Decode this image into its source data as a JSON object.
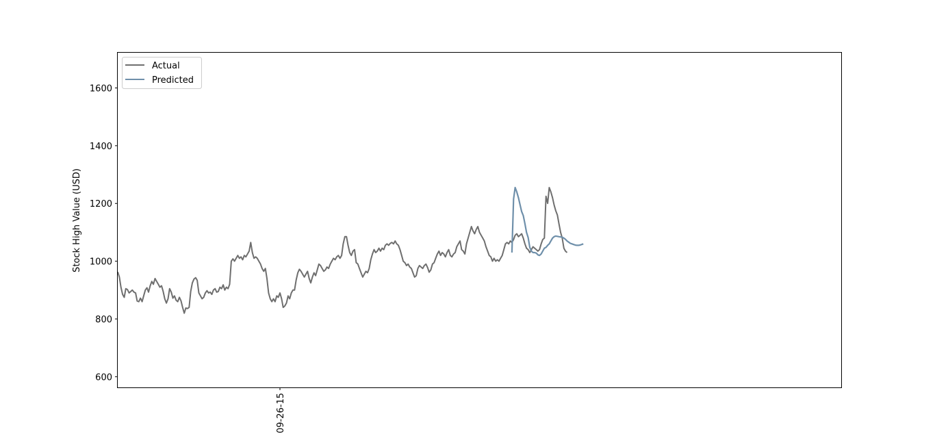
{
  "chart_data": {
    "type": "line",
    "ylabel": "Stock High Value (USD)",
    "xlabel": "",
    "ylim": [
      563,
      1722
    ],
    "yticks": [
      600,
      800,
      1000,
      1200,
      1400,
      1600
    ],
    "x_tick_labels": [
      "09-26-15"
    ],
    "grid": false,
    "legend_position": "top-left",
    "series": [
      {
        "name": "Actual",
        "color": "#6e6e6e",
        "values": [
          963,
          945,
          910,
          885,
          875,
          905,
          902,
          890,
          895,
          900,
          893,
          890,
          862,
          860,
          872,
          860,
          880,
          900,
          908,
          893,
          915,
          930,
          920,
          940,
          930,
          920,
          910,
          915,
          895,
          870,
          855,
          870,
          905,
          893,
          872,
          880,
          865,
          860,
          875,
          863,
          840,
          820,
          838,
          836,
          840,
          895,
          925,
          938,
          943,
          934,
          890,
          880,
          870,
          875,
          890,
          898,
          890,
          893,
          885,
          900,
          905,
          893,
          895,
          910,
          905,
          918,
          900,
          910,
          905,
          920,
          1000,
          1008,
          1000,
          1010,
          1020,
          1010,
          1015,
          1005,
          1020,
          1015,
          1025,
          1035,
          1065,
          1030,
          1010,
          1015,
          1010,
          1000,
          990,
          975,
          965,
          975,
          940,
          890,
          870,
          860,
          870,
          860,
          880,
          875,
          890,
          870,
          840,
          845,
          855,
          880,
          870,
          890,
          900,
          900,
          935,
          960,
          972,
          965,
          955,
          945,
          955,
          965,
          940,
          925,
          945,
          960,
          950,
          970,
          990,
          985,
          975,
          965,
          970,
          980,
          975,
          990,
          1000,
          1010,
          1005,
          1015,
          1020,
          1010,
          1020,
          1060,
          1085,
          1085,
          1055,
          1030,
          1020,
          1035,
          1040,
          995,
          990,
          975,
          960,
          945,
          955,
          965,
          960,
          975,
          1005,
          1025,
          1040,
          1030,
          1035,
          1045,
          1035,
          1045,
          1040,
          1055,
          1060,
          1055,
          1062,
          1065,
          1060,
          1070,
          1060,
          1055,
          1040,
          1020,
          1000,
          995,
          985,
          990,
          980,
          975,
          960,
          945,
          950,
          975,
          985,
          980,
          975,
          985,
          990,
          978,
          962,
          970,
          990,
          995,
          1010,
          1025,
          1035,
          1020,
          1030,
          1025,
          1015,
          1030,
          1040,
          1020,
          1015,
          1025,
          1030,
          1050,
          1060,
          1070,
          1040,
          1035,
          1025,
          1060,
          1080,
          1100,
          1120,
          1105,
          1095,
          1110,
          1120,
          1100,
          1090,
          1080,
          1070,
          1050,
          1035,
          1020,
          1015,
          1000,
          1010,
          1000,
          1005,
          1000,
          1010,
          1020,
          1040,
          1060,
          1065,
          1060,
          1070,
          1065,
          1075,
          1090,
          1095,
          1085,
          1090,
          1095,
          1080,
          1060,
          1045,
          1040,
          1030,
          1040,
          1050,
          1045,
          1040,
          1035,
          1040,
          1060,
          1075,
          1080,
          1225,
          1200,
          1255,
          1240,
          1220,
          1195,
          1175,
          1160,
          1130,
          1100,
          1080,
          1045,
          1035,
          1030
        ]
      },
      {
        "name": "Predicted",
        "color": "#6e8faa",
        "values": [
          1030,
          1215,
          1255,
          1240,
          1220,
          1195,
          1172,
          1158,
          1130,
          1100,
          1082,
          1048,
          1035,
          1030,
          1030,
          1028,
          1022,
          1020,
          1025,
          1035,
          1045,
          1048,
          1055,
          1060,
          1070,
          1080,
          1085,
          1087,
          1086,
          1085,
          1084,
          1083,
          1080,
          1076,
          1070,
          1066,
          1062,
          1060,
          1058,
          1056,
          1055,
          1055,
          1056,
          1058,
          1060
        ]
      }
    ]
  }
}
